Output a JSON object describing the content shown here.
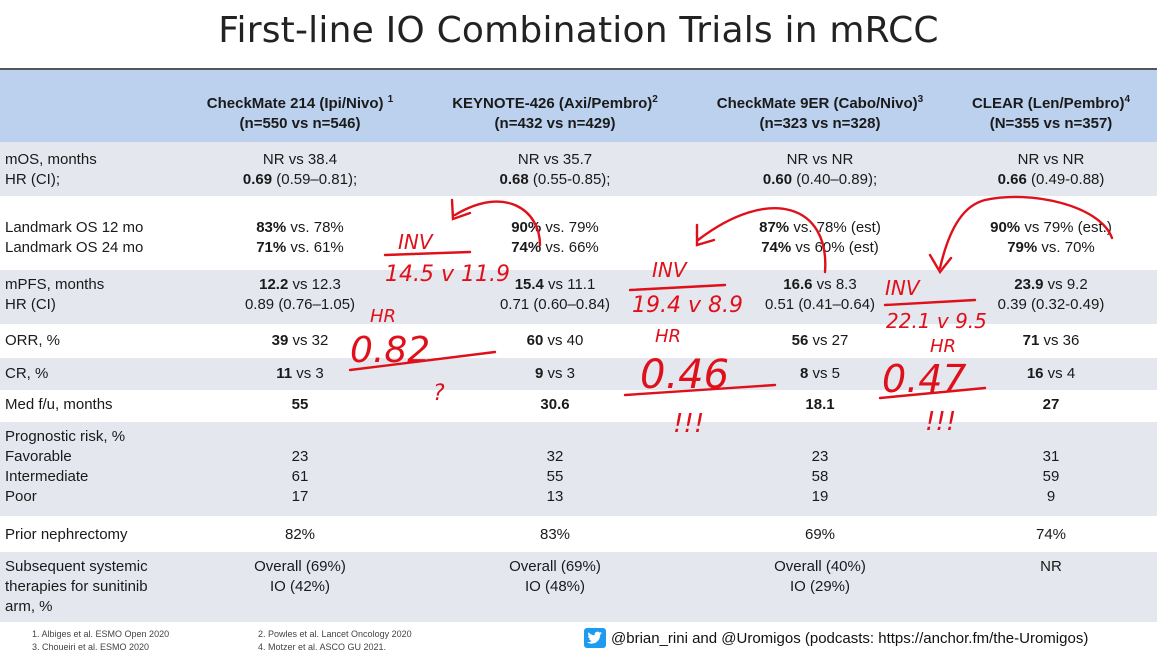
{
  "title": "First-line IO Combination Trials in mRCC",
  "columns": [
    {
      "name": "CheckMate 214 (Ipi/Nivo)",
      "sup": "1",
      "n": "(n=550 vs n=546)"
    },
    {
      "name": "KEYNOTE-426 (Axi/Pembro)",
      "sup": "2",
      "n": "(n=432 vs n=429)"
    },
    {
      "name": "CheckMate 9ER (Cabo/Nivo)",
      "sup": "3",
      "n": "(n=323 vs n=328)"
    },
    {
      "name": "CLEAR (Len/Pembro)",
      "sup": "4",
      "n": "(N=355 vs n=357)"
    }
  ],
  "rows": {
    "mos": {
      "label1": "mOS, months",
      "label2": "HR (CI);",
      "cells": [
        {
          "l1": "NR vs 38.4",
          "b2": "0.69",
          "r2": " (0.59–0.81);"
        },
        {
          "l1": "NR vs 35.7",
          "b2": "0.68",
          "r2": " (0.55-0.85);"
        },
        {
          "l1": "NR vs NR",
          "b2": "0.60",
          "r2": " (0.40–0.89);"
        },
        {
          "l1": "NR vs NR",
          "b2": "0.66",
          "r2": " (0.49-0.88)"
        }
      ]
    },
    "landmark": {
      "label1": "Landmark OS 12 mo",
      "label2": "Landmark OS 24 mo",
      "cells": [
        {
          "b1": "83%",
          "r1": " vs. 78%",
          "b2": "71%",
          "r2": " vs. 61%"
        },
        {
          "b1": "90%",
          "r1": " vs. 79%",
          "b2": "74%",
          "r2": " vs. 66%"
        },
        {
          "b1": "87%",
          "r1": " vs. 78% (est)",
          "b2": "74%",
          "r2": " vs 60% (est)"
        },
        {
          "b1": "90%",
          "r1": " vs 79% (est.)",
          "b2": "79%",
          "r2": " vs. 70%"
        }
      ]
    },
    "mpfs": {
      "label1": "mPFS, months",
      "label2": "HR (CI)",
      "cells": [
        {
          "b1": "12.2",
          "r1": " vs 12.3",
          "l2": "0.89 (0.76–1.05)"
        },
        {
          "b1": "15.4",
          "r1": " vs 11.1",
          "l2": "0.71 (0.60–0.84)"
        },
        {
          "b1": "16.6",
          "r1": " vs 8.3",
          "l2": "0.51 (0.41–0.64)"
        },
        {
          "b1": "23.9",
          "r1": " vs 9.2",
          "l2": "0.39 (0.32-0.49)"
        }
      ]
    },
    "orr": {
      "label": "ORR, %",
      "cells": [
        {
          "b": "39",
          "r": " vs 32"
        },
        {
          "b": "60",
          "r": " vs 40"
        },
        {
          "b": "56",
          "r": " vs 27"
        },
        {
          "b": "71",
          "r": " vs 36"
        }
      ]
    },
    "cr": {
      "label": "CR, %",
      "cells": [
        {
          "b": "11",
          "r": " vs 3"
        },
        {
          "b": "9",
          "r": " vs 3"
        },
        {
          "b": "8",
          "r": " vs 5"
        },
        {
          "b": "16",
          "r": " vs 4"
        }
      ]
    },
    "fu": {
      "label": "Med f/u, months",
      "cells": [
        "55",
        "30.6",
        "18.1",
        "27"
      ]
    },
    "prog": {
      "labels": [
        "Prognostic risk, %",
        "Favorable",
        "Intermediate",
        "Poor"
      ],
      "cells": [
        [
          "23",
          "61",
          "17"
        ],
        [
          "32",
          "55",
          "13"
        ],
        [
          "23",
          "58",
          "19"
        ],
        [
          "31",
          "59",
          "9"
        ]
      ]
    },
    "neph": {
      "label": "Prior nephrectomy",
      "cells": [
        "82%",
        "83%",
        "69%",
        "74%"
      ]
    },
    "subs": {
      "labels": [
        "Subsequent systemic",
        "therapies for sunitinib",
        "arm, %"
      ],
      "cells": [
        [
          "Overall (69%)",
          "IO (42%)"
        ],
        [
          "Overall (69%)",
          "IO (48%)"
        ],
        [
          "Overall (40%)",
          "IO (29%)"
        ],
        [
          "NR",
          ""
        ]
      ]
    }
  },
  "annotations": {
    "inv1": "INV",
    "pfs1": "14.5 v 11.9",
    "hr1": "HR",
    "val1": "0.82",
    "q1": "?",
    "inv2": "INV",
    "pfs2": "19.4 v 8.9",
    "hr2": "HR",
    "val2": "0.46",
    "ex2": "!!!",
    "inv3": "INV",
    "pfs3": "22.1 v 9.5",
    "hr3": "HR",
    "val3": "0.47",
    "ex3": "!!!"
  },
  "refs": {
    "r1": "1.   Albiges et al. ESMO Open 2020",
    "r3": "3.   Choueiri et al. ESMO 2020",
    "r2": "2. Powles et al. Lancet Oncology 2020",
    "r4": "4. Motzer et al. ASCO GU 2021."
  },
  "twitter": "@brian_rini and @Uromigos (podcasts: https://anchor.fm/the-Uromigos)",
  "colors": {
    "header": "#bcd1ee",
    "shade": "#e4e7ee",
    "ink": "#e0101a"
  }
}
